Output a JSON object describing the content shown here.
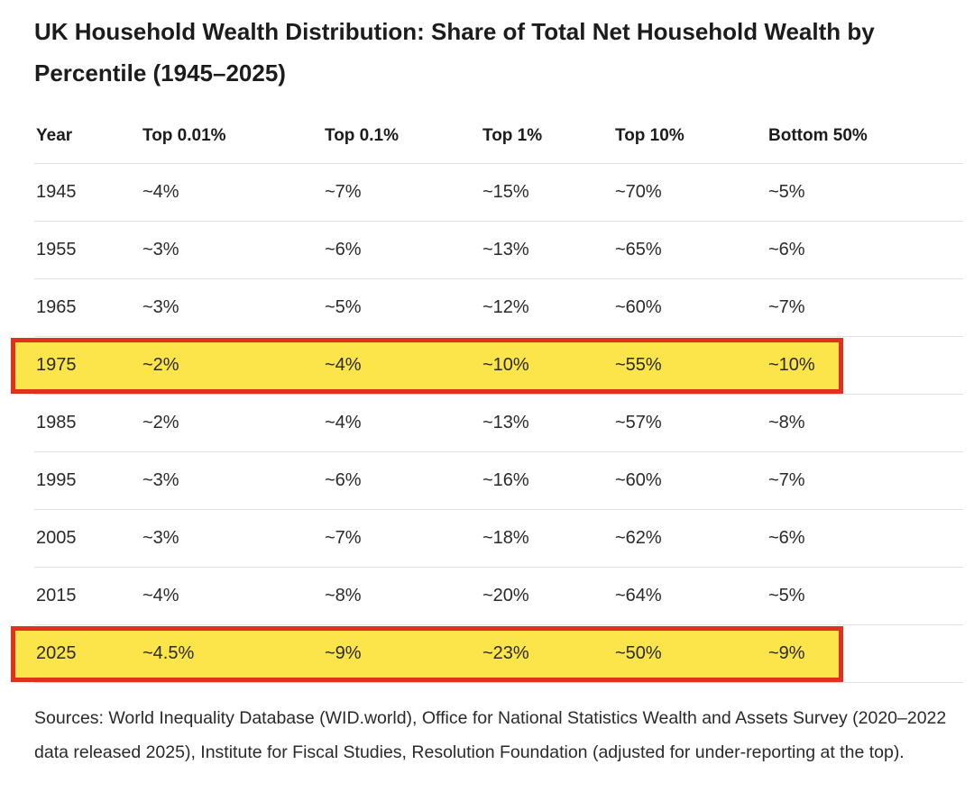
{
  "title": "UK Household Wealth Distribution: Share of Total Net Household Wealth by Percentile (1945–2025)",
  "table": {
    "headers": [
      "Year",
      "Top 0.01%",
      "Top 0.1%",
      "Top 1%",
      "Top 10%",
      "Bottom 50%"
    ],
    "rows": [
      {
        "cells": [
          "1945",
          "~4%",
          "~7%",
          "~15%",
          "~70%",
          "~5%"
        ],
        "highlighted": false
      },
      {
        "cells": [
          "1955",
          "~3%",
          "~6%",
          "~13%",
          "~65%",
          "~6%"
        ],
        "highlighted": false
      },
      {
        "cells": [
          "1965",
          "~3%",
          "~5%",
          "~12%",
          "~60%",
          "~7%"
        ],
        "highlighted": false
      },
      {
        "cells": [
          "1975",
          "~2%",
          "~4%",
          "~10%",
          "~55%",
          "~10%"
        ],
        "highlighted": true
      },
      {
        "cells": [
          "1985",
          "~2%",
          "~4%",
          "~13%",
          "~57%",
          "~8%"
        ],
        "highlighted": false
      },
      {
        "cells": [
          "1995",
          "~3%",
          "~6%",
          "~16%",
          "~60%",
          "~7%"
        ],
        "highlighted": false
      },
      {
        "cells": [
          "2005",
          "~3%",
          "~7%",
          "~18%",
          "~62%",
          "~6%"
        ],
        "highlighted": false
      },
      {
        "cells": [
          "2015",
          "~4%",
          "~8%",
          "~20%",
          "~64%",
          "~5%"
        ],
        "highlighted": false
      },
      {
        "cells": [
          "2025",
          "~4.5%",
          "~9%",
          "~23%",
          "~50%",
          "~9%"
        ],
        "highlighted": true
      }
    ]
  },
  "sources": "Sources: World Inequality Database (WID.world), Office for National Statistics Wealth and Assets Survey (2020–2022 data released 2025), Institute for Fiscal Studies, Resolution Foundation (adjusted for under-reporting at the top).",
  "colors": {
    "highlight_fill": "#fbe54a",
    "highlight_border": "#e0301e"
  }
}
